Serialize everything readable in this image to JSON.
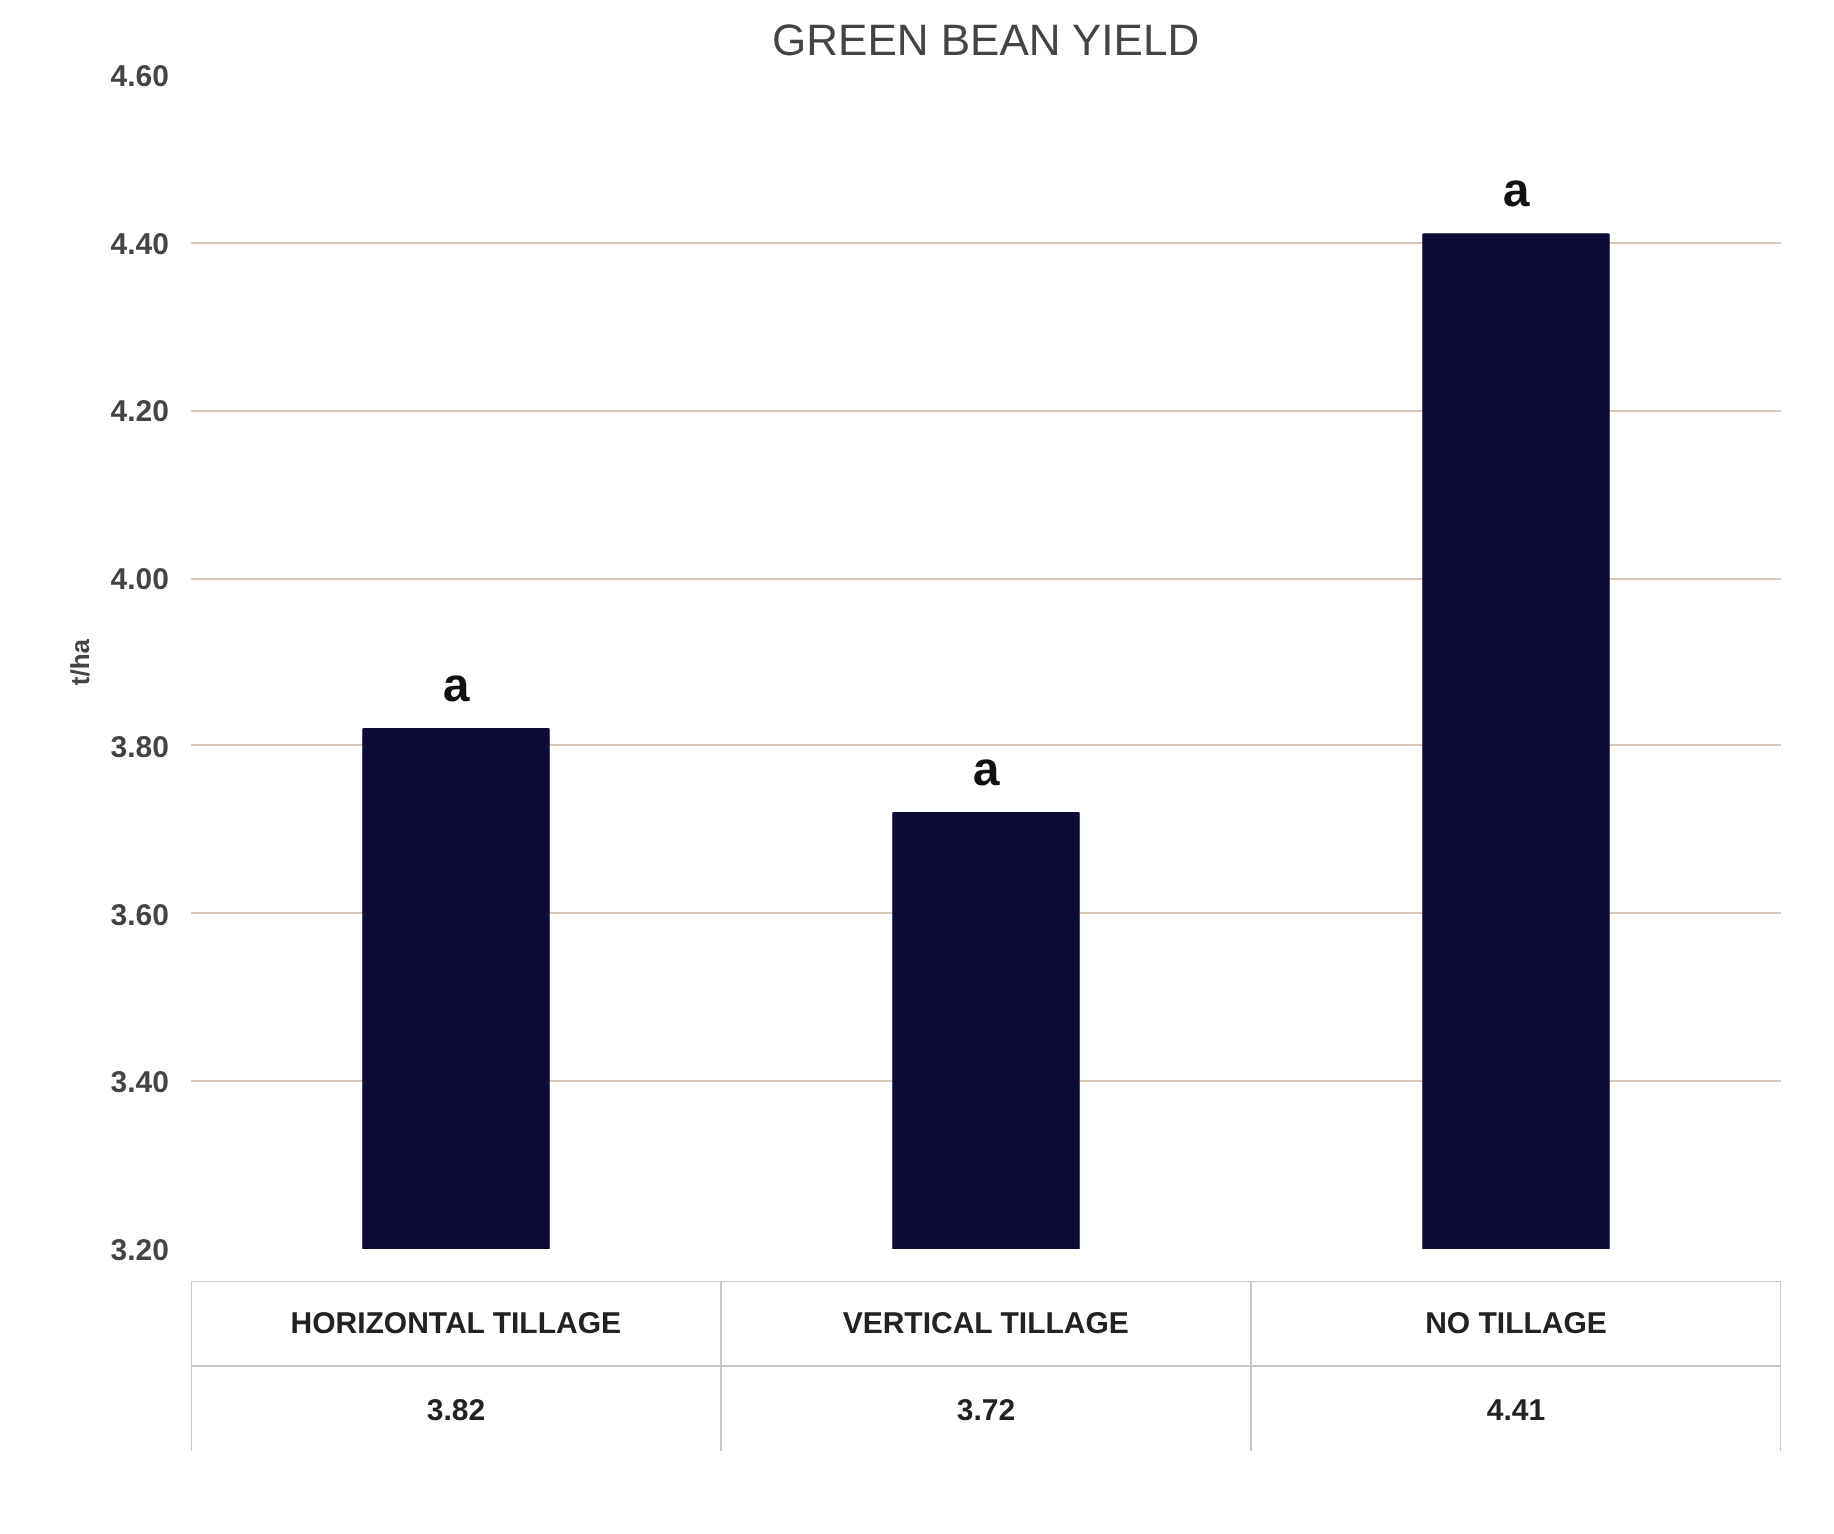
{
  "chart_data": {
    "type": "bar",
    "title": "GREEN BEAN YIELD",
    "ylabel": "t/ha",
    "categories": [
      "HORIZONTAL TILLAGE",
      "VERTICAL TILLAGE",
      "NO TILLAGE"
    ],
    "values": [
      3.82,
      3.72,
      4.41
    ],
    "color": "#0c0c36",
    "ylim": [
      3.2,
      4.6
    ],
    "yticks": [
      {
        "value": 3.2,
        "label": "3.20"
      },
      {
        "value": 3.4,
        "label": "3.40"
      },
      {
        "value": 3.6,
        "label": "3.60"
      },
      {
        "value": 3.8,
        "label": "3.80"
      },
      {
        "value": 4.0,
        "label": "4.00"
      },
      {
        "value": 4.2,
        "label": "4.20"
      },
      {
        "value": 4.4,
        "label": "4.40"
      },
      {
        "value": 4.6,
        "label": "4.60"
      }
    ],
    "grid": "y",
    "data_labels": true,
    "tick_labels": "y",
    "annotations": [
      {
        "text": "a",
        "x": "HORIZONTAL TILLAGE",
        "y": 3.82
      },
      {
        "text": "a",
        "x": "VERTICAL TILLAGE",
        "y": 3.72
      },
      {
        "text": "a",
        "x": "NO TILLAGE",
        "y": 4.41
      }
    ]
  }
}
